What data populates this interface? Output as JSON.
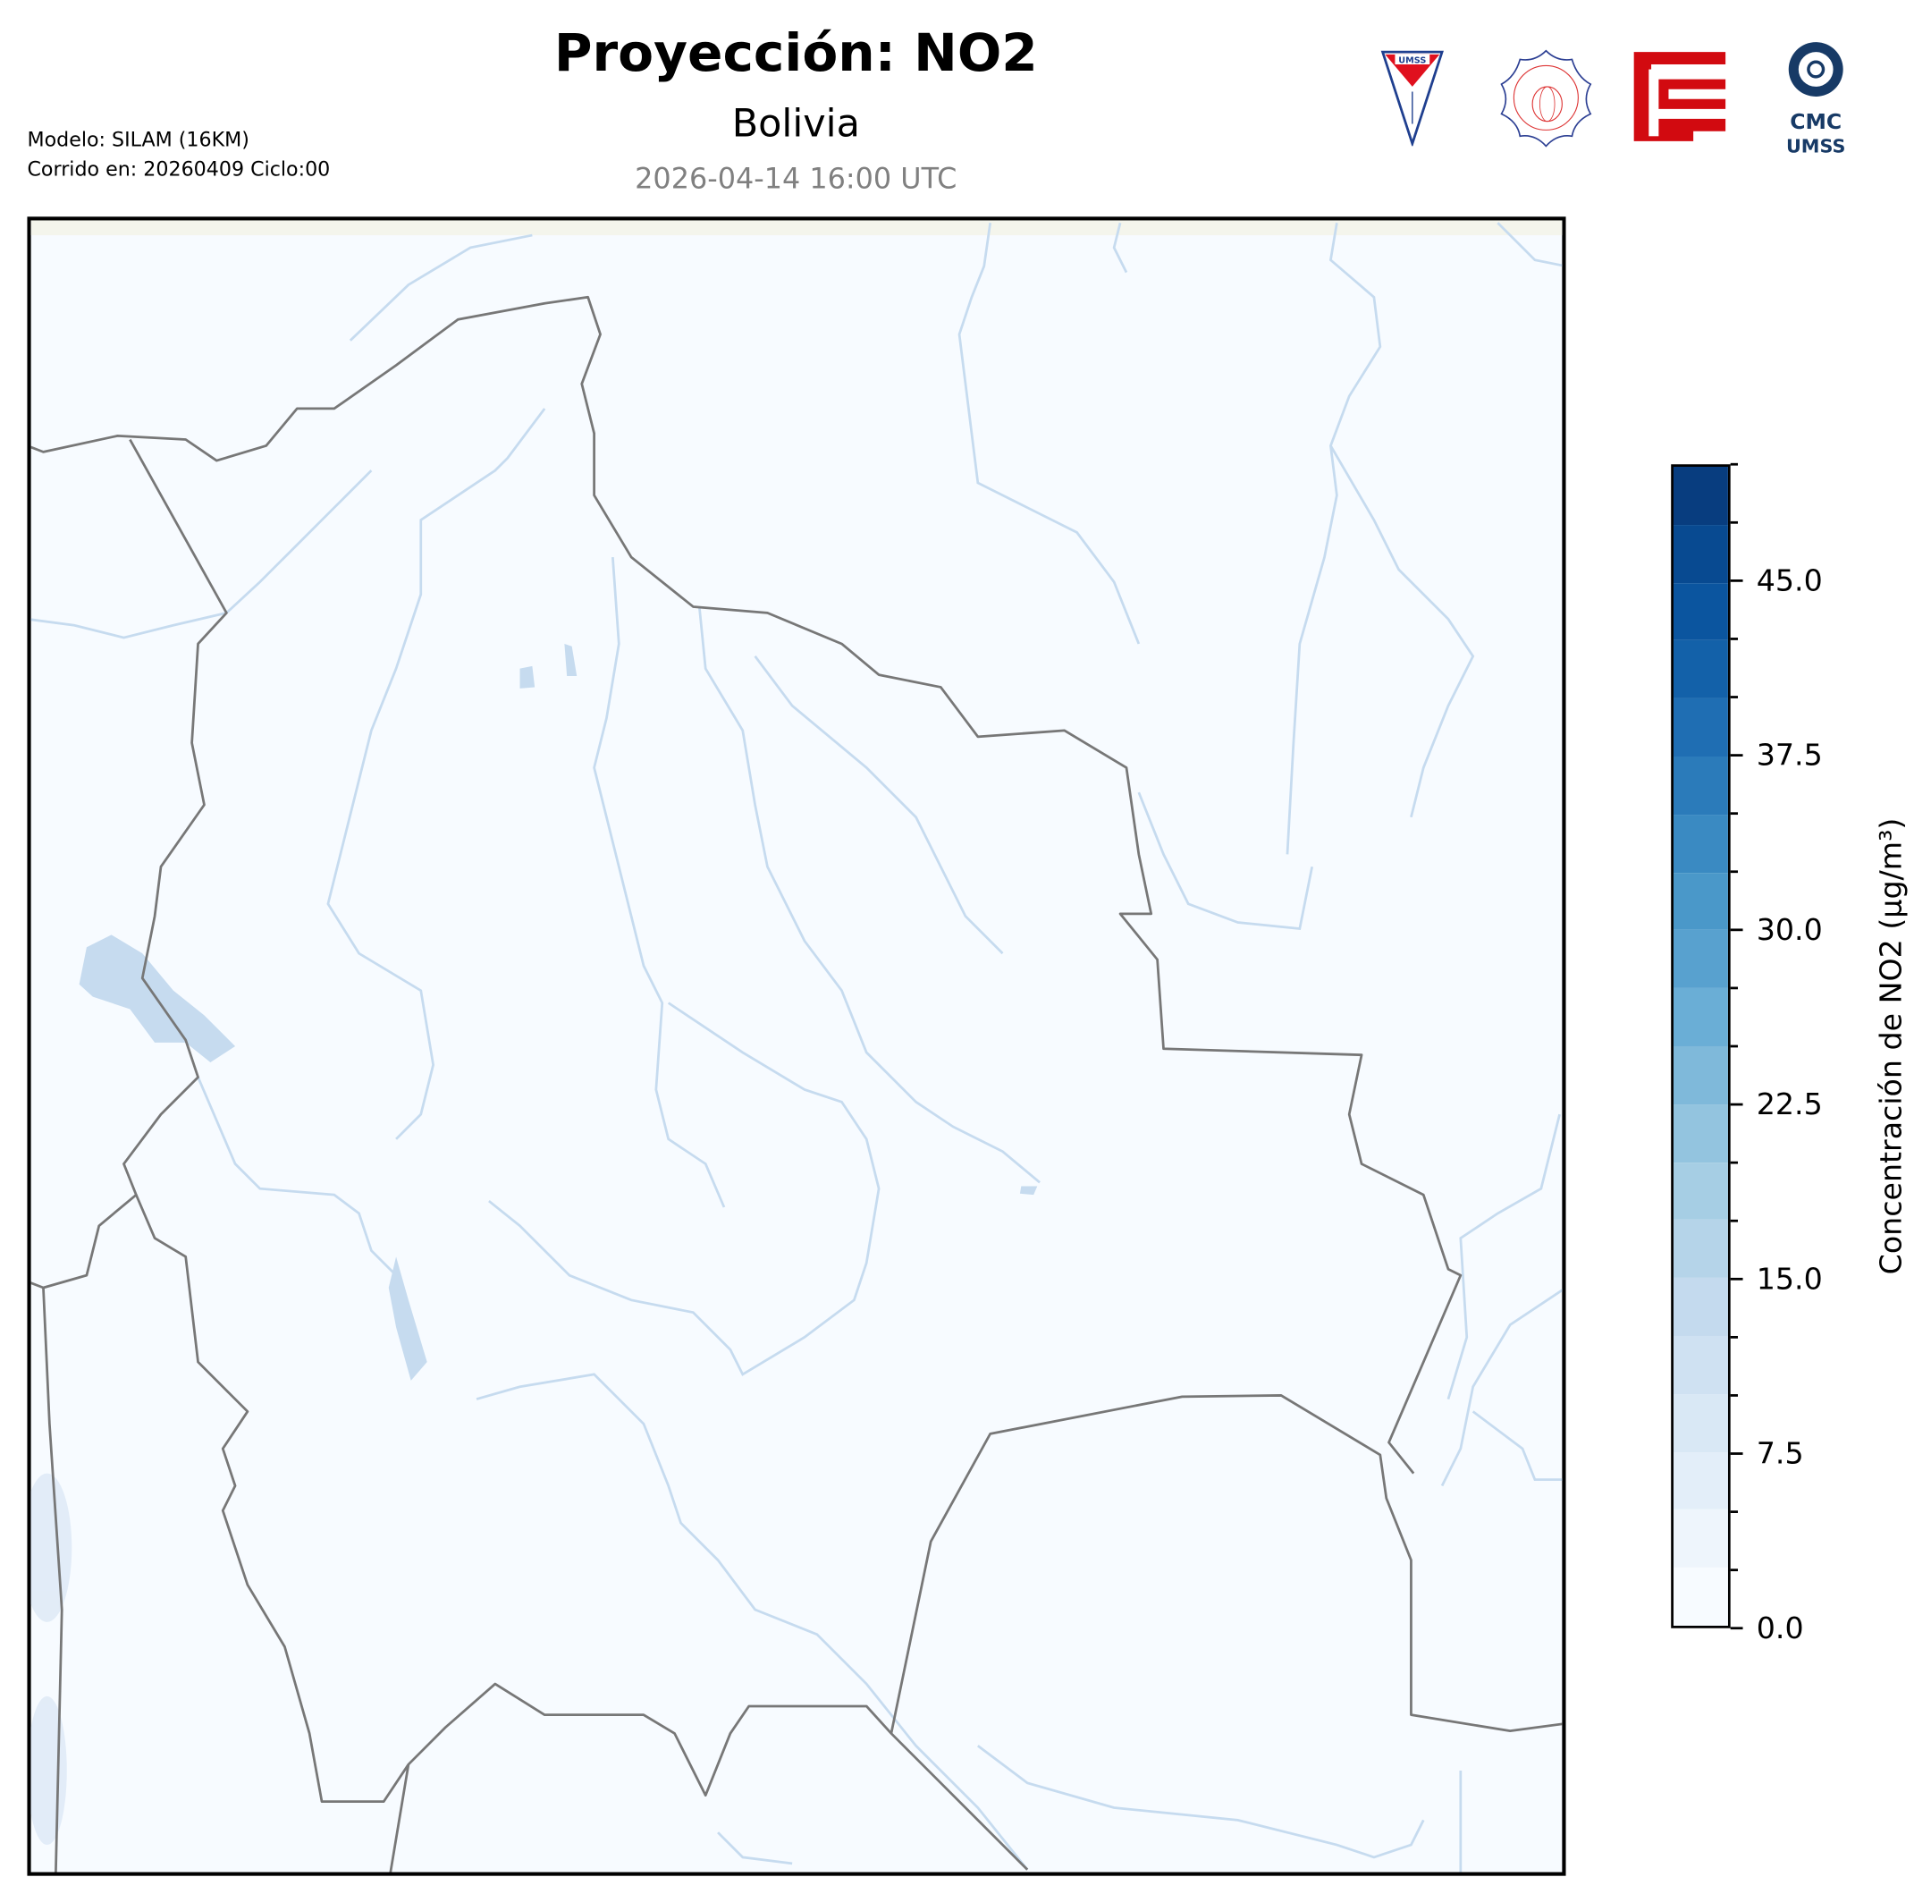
{
  "header": {
    "title": "Proyección: NO2",
    "subtitle": "Bolivia",
    "datetime": "2026-04-14 16:00 UTC",
    "model": "Modelo: SILAM (16KM)",
    "run": "Corrido en: 20260409 Ciclo:00"
  },
  "logos": [
    {
      "name": "umss-logo",
      "text": "UMSS"
    },
    {
      "name": "departamento-fisica-logo",
      "text": "DEPARTAMENTO DE FISICA FCyT-UMSS"
    },
    {
      "name": "fcyt-logo",
      "text": ""
    },
    {
      "name": "cmc-umss-logo",
      "text": "CMC UMSS"
    }
  ],
  "map": {
    "region": "Bolivia",
    "variable": "NO2",
    "colors": {
      "background": "#f7fbff",
      "border": "#777777",
      "rivers": "#c6dbef",
      "lakes": "#c6dbef",
      "frame_top": "#f4f5ec"
    }
  },
  "colorbar": {
    "label": "Concentración de NO2 (µg/m³)",
    "min": 0,
    "max": 50,
    "step": 2.5,
    "tick_labels": [
      "0.0",
      "7.5",
      "15.0",
      "22.5",
      "30.0",
      "37.5",
      "45.0"
    ],
    "tick_values": [
      0,
      7.5,
      15,
      22.5,
      30,
      37.5,
      45
    ],
    "colormap": "Blues",
    "colors": [
      "#f7fbff",
      "#eef5fc",
      "#e3eef9",
      "#d9e8f5",
      "#cfe1f2",
      "#c4daee",
      "#b5d4e9",
      "#a6cee4",
      "#93c4df",
      "#7fb9da",
      "#6aaed6",
      "#58a1cf",
      "#4a98c9",
      "#3a8ac2",
      "#2b7bba",
      "#1f6eb3",
      "#1361a9",
      "#0b559f",
      "#084a91",
      "#083d7f",
      "#08306b",
      "#081d4c"
    ]
  }
}
